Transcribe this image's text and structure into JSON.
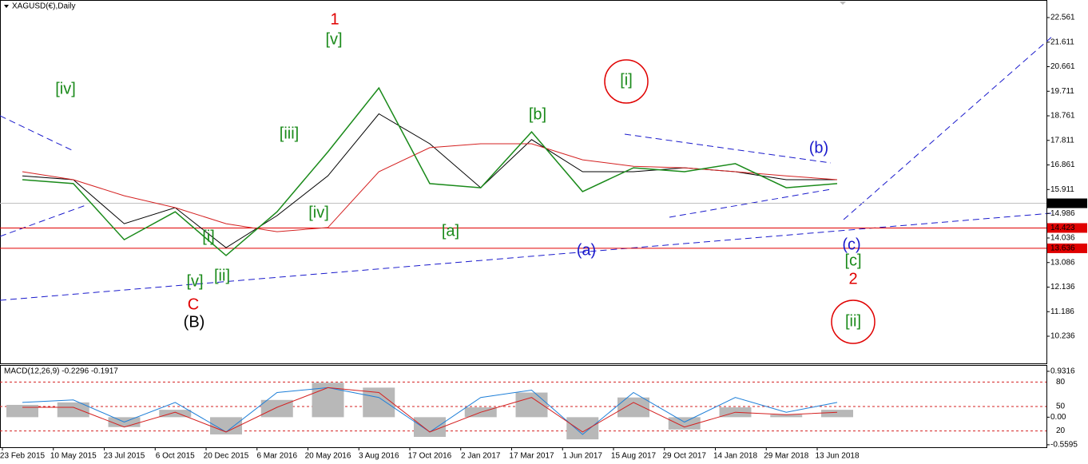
{
  "chart_data": [
    {
      "type": "line",
      "title": "XAGUSD(€),Daily",
      "x": [
        "23 Feb 2015",
        "10 May 2015",
        "23 Jul 2015",
        "6 Oct 2015",
        "20 Dec 2015",
        "6 Mar 2016",
        "20 May 2016",
        "3 Aug 2016",
        "17 Oct 2016",
        "2 Jan 2017",
        "17 Mar 2017",
        "1 Jun 2017",
        "15 Aug 2017",
        "29 Oct 2017",
        "14 Jan 2018",
        "29 Mar 2018",
        "13 Jun 2018"
      ],
      "series": [
        {
          "color": "#1a8a1a",
          "values": [
            16.29,
            16.14,
            13.97,
            15.05,
            13.36,
            15.05,
            17.37,
            19.84,
            16.14,
            15.98,
            18.14,
            15.83,
            16.75,
            16.6,
            16.91,
            15.98,
            16.14
          ]
        },
        {
          "color": "#d42020",
          "values": [
            16.6,
            16.29,
            15.67,
            15.21,
            14.59,
            14.28,
            14.44,
            16.6,
            17.53,
            17.68,
            17.68,
            17.06,
            16.81,
            16.75,
            16.6,
            16.44,
            16.29
          ]
        },
        {
          "color": "#000000",
          "values": [
            16.44,
            16.29,
            14.59,
            15.21,
            13.66,
            14.9,
            16.44,
            18.84,
            17.68,
            15.98,
            17.84,
            16.6,
            16.6,
            16.75,
            16.6,
            16.29,
            16.29
          ]
        }
      ],
      "ylim": [
        9.186,
        23.117
      ],
      "yticks": [
        22.561,
        21.611,
        20.661,
        19.711,
        18.761,
        17.811,
        16.861,
        15.911,
        14.986,
        14.036,
        13.086,
        12.136,
        11.186,
        10.236
      ],
      "price_lines": [
        {
          "value": 15.378,
          "color": "#000000"
        },
        {
          "value": 14.423,
          "color": "#e00000"
        },
        {
          "value": 13.636,
          "color": "#e00000"
        }
      ],
      "annotations": [
        {
          "text": "1",
          "color": "#e00000"
        },
        {
          "text": "[v]",
          "color": "#1a8a1a"
        },
        {
          "text": "[iv]",
          "color": "#1a8a1a"
        },
        {
          "text": "[iii]",
          "color": "#1a8a1a"
        },
        {
          "text": "[iv]",
          "color": "#1a8a1a"
        },
        {
          "text": "[i]",
          "color": "#1a8a1a"
        },
        {
          "text": "[ii]",
          "color": "#1a8a1a"
        },
        {
          "text": "[v]",
          "color": "#1a8a1a"
        },
        {
          "text": "C",
          "color": "#e00000"
        },
        {
          "text": "(B)",
          "color": "#000000"
        },
        {
          "text": "[a]",
          "color": "#1a8a1a"
        },
        {
          "text": "[b]",
          "color": "#1a8a1a"
        },
        {
          "text": "(a)",
          "color": "#1a1acc"
        },
        {
          "text": "[i]",
          "color": "#1a8a1a"
        },
        {
          "text": "(b)",
          "color": "#1a1acc"
        },
        {
          "text": "(c)",
          "color": "#1a1acc"
        },
        {
          "text": "[c]",
          "color": "#1a8a1a"
        },
        {
          "text": "2",
          "color": "#e00000"
        },
        {
          "text": "[ii]",
          "color": "#1a8a1a"
        }
      ]
    },
    {
      "type": "macd",
      "title": "MACD(12,26,9) -0.2296 -0.1917",
      "histogram": {
        "color": "#b8b8b8",
        "values": [
          0.25,
          0.3,
          -0.2,
          0.15,
          -0.35,
          0.35,
          0.7,
          0.6,
          -0.4,
          0.2,
          0.5,
          -0.45,
          0.4,
          -0.25,
          0.2,
          0.05,
          0.15
        ]
      },
      "series": [
        {
          "color": "#1e7fd8",
          "values": [
            0.3,
            0.35,
            -0.1,
            0.3,
            -0.3,
            0.5,
            0.6,
            0.4,
            -0.3,
            0.4,
            0.55,
            -0.35,
            0.5,
            -0.1,
            0.4,
            0.1,
            0.3
          ]
        },
        {
          "color": "#d42020",
          "values": [
            0.2,
            0.2,
            -0.2,
            0.1,
            -0.3,
            0.2,
            0.6,
            0.5,
            -0.3,
            0.1,
            0.4,
            -0.3,
            0.3,
            -0.2,
            0.1,
            0.05,
            0.1
          ]
        }
      ],
      "ylim": [
        -0.61,
        1.044
      ],
      "yticks": [
        0.9316,
        {
          "value": 0,
          "label": "0.00"
        },
        -0.5595
      ],
      "y2lim": [
        0,
        100
      ],
      "y2ticks": [
        80,
        50,
        20
      ]
    }
  ]
}
